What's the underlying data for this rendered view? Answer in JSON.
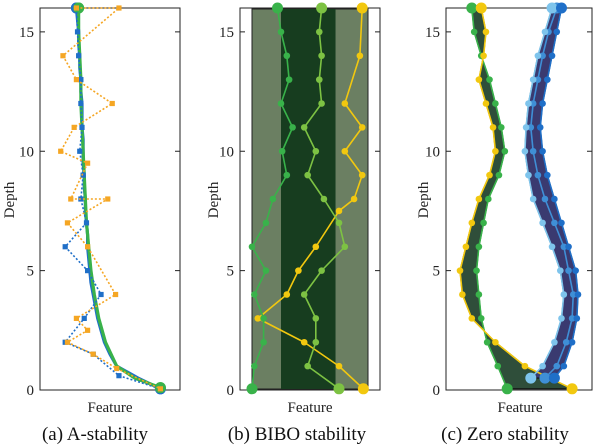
{
  "colors": {
    "blue": "#1f6fc8",
    "orange": "#f5a623",
    "green": "#39b24a",
    "yellow": "#f2c80f",
    "lightgreen": "#7dc243",
    "bibo_outer": "#6b7f62",
    "bibo_inner": "#173d1f",
    "zero_left_fill": "#2f4e3a",
    "zero_right_fill": "#3a3a70",
    "lightblue": "#7ec4ec",
    "midblue": "#3f8fd6"
  },
  "chart_data": [
    {
      "type": "line",
      "caption": "(a) A-stability",
      "xlabel": "Feature",
      "ylabel": "Depth",
      "ylim": [
        0,
        16
      ],
      "yticks": [
        0,
        5,
        10,
        15
      ],
      "series": [
        {
          "style": "solid",
          "color": "blue",
          "points": [
            [
              0.2,
              16
            ],
            [
              0.21,
              15.5
            ],
            [
              0.22,
              15
            ],
            [
              0.22,
              14.5
            ],
            [
              0.23,
              14
            ],
            [
              0.23,
              13.5
            ],
            [
              0.24,
              13
            ],
            [
              0.24,
              12.5
            ],
            [
              0.25,
              12
            ],
            [
              0.25,
              11.5
            ],
            [
              0.25,
              11
            ],
            [
              0.26,
              10.5
            ],
            [
              0.26,
              10
            ],
            [
              0.26,
              9.5
            ],
            [
              0.27,
              9
            ],
            [
              0.27,
              8.5
            ],
            [
              0.28,
              8
            ],
            [
              0.28,
              7.5
            ],
            [
              0.29,
              7
            ],
            [
              0.3,
              6.5
            ],
            [
              0.3,
              6
            ],
            [
              0.31,
              5.5
            ],
            [
              0.32,
              5
            ],
            [
              0.33,
              4.5
            ],
            [
              0.35,
              4
            ],
            [
              0.37,
              3.5
            ],
            [
              0.39,
              3
            ],
            [
              0.42,
              2.5
            ],
            [
              0.45,
              2
            ],
            [
              0.5,
              1.5
            ],
            [
              0.56,
              1
            ],
            [
              0.75,
              0.5
            ],
            [
              0.95,
              0.05
            ]
          ]
        },
        {
          "style": "solid",
          "color": "green",
          "points": [
            [
              0.22,
              16
            ],
            [
              0.22,
              15
            ],
            [
              0.23,
              14
            ],
            [
              0.24,
              13
            ],
            [
              0.24,
              12
            ],
            [
              0.25,
              11
            ],
            [
              0.26,
              10
            ],
            [
              0.27,
              9
            ],
            [
              0.28,
              8
            ],
            [
              0.29,
              7
            ],
            [
              0.31,
              6
            ],
            [
              0.33,
              5
            ],
            [
              0.36,
              4
            ],
            [
              0.4,
              3
            ],
            [
              0.46,
              2
            ],
            [
              0.56,
              1
            ],
            [
              0.72,
              0.5
            ],
            [
              0.95,
              0.1
            ]
          ]
        },
        {
          "style": "dotted",
          "color": "blue",
          "points": [
            [
              0.2,
              16
            ],
            [
              0.21,
              15
            ],
            [
              0.22,
              14
            ],
            [
              0.24,
              13
            ],
            [
              0.24,
              12
            ],
            [
              0.25,
              11
            ],
            [
              0.23,
              10
            ],
            [
              0.26,
              9
            ],
            [
              0.24,
              8
            ],
            [
              0.29,
              7
            ],
            [
              0.1,
              6
            ],
            [
              0.3,
              5
            ],
            [
              0.42,
              4
            ],
            [
              0.27,
              3
            ],
            [
              0.1,
              2
            ],
            [
              0.35,
              1.5
            ],
            [
              0.58,
              0.6
            ],
            [
              0.95,
              0.05
            ]
          ]
        },
        {
          "style": "dotted",
          "color": "orange",
          "points": [
            [
              0.2,
              16
            ],
            [
              0.58,
              16
            ],
            [
              0.08,
              14
            ],
            [
              0.2,
              13
            ],
            [
              0.52,
              12
            ],
            [
              0.18,
              11
            ],
            [
              0.06,
              10
            ],
            [
              0.3,
              9.5
            ],
            [
              0.15,
              8
            ],
            [
              0.48,
              8
            ],
            [
              0.12,
              7
            ],
            [
              0.3,
              6
            ],
            [
              0.55,
              4
            ],
            [
              0.2,
              3
            ],
            [
              0.3,
              2.5
            ],
            [
              0.12,
              2
            ],
            [
              0.35,
              1.5
            ],
            [
              0.56,
              0.9
            ],
            [
              0.95,
              0.05
            ]
          ]
        }
      ]
    },
    {
      "type": "line",
      "caption": "(b) BIBO stability",
      "xlabel": "Feature",
      "ylabel": "Depth",
      "ylim": [
        0,
        16
      ],
      "yticks": [
        0,
        5,
        10,
        15
      ],
      "bands": {
        "outer": [
          0.0,
          1.0
        ],
        "inner": [
          0.25,
          0.72
        ]
      },
      "series": [
        {
          "color": "yellow",
          "points": [
            [
              0.95,
              16
            ],
            [
              0.93,
              14
            ],
            [
              0.8,
              12
            ],
            [
              0.95,
              11
            ],
            [
              0.8,
              10
            ],
            [
              0.95,
              9
            ],
            [
              0.88,
              8
            ],
            [
              0.75,
              7.5
            ],
            [
              0.55,
              6
            ],
            [
              0.4,
              5
            ],
            [
              0.3,
              4
            ],
            [
              0.05,
              3
            ],
            [
              0.45,
              2
            ],
            [
              0.75,
              1
            ],
            [
              0.96,
              0.05
            ]
          ]
        },
        {
          "color": "green",
          "points": [
            [
              0.22,
              16
            ],
            [
              0.25,
              15
            ],
            [
              0.3,
              14
            ],
            [
              0.32,
              13
            ],
            [
              0.25,
              12
            ],
            [
              0.35,
              11
            ],
            [
              0.26,
              10
            ],
            [
              0.3,
              9
            ],
            [
              0.18,
              8
            ],
            [
              0.12,
              7
            ],
            [
              0.0,
              6
            ],
            [
              0.12,
              5
            ],
            [
              0.02,
              4
            ],
            [
              0.1,
              3
            ],
            [
              0.1,
              2
            ],
            [
              0.02,
              1
            ],
            [
              0.0,
              0.05
            ]
          ]
        },
        {
          "color": "lightgreen",
          "points": [
            [
              0.6,
              16
            ],
            [
              0.58,
              15
            ],
            [
              0.6,
              14
            ],
            [
              0.58,
              13
            ],
            [
              0.6,
              12
            ],
            [
              0.45,
              11
            ],
            [
              0.55,
              10
            ],
            [
              0.48,
              9
            ],
            [
              0.62,
              8
            ],
            [
              0.75,
              7
            ],
            [
              0.8,
              6
            ],
            [
              0.6,
              5
            ],
            [
              0.45,
              4
            ],
            [
              0.55,
              3
            ],
            [
              0.55,
              2
            ],
            [
              0.48,
              1
            ],
            [
              0.75,
              0.05
            ]
          ]
        }
      ]
    },
    {
      "type": "line",
      "caption": "(c) Zero stability",
      "xlabel": "Feature",
      "ylabel": "Depth",
      "ylim": [
        0,
        16
      ],
      "yticks": [
        0,
        5,
        10,
        15
      ],
      "series": [
        {
          "color": "green",
          "points": [
            [
              0.1,
              16
            ],
            [
              0.12,
              15
            ],
            [
              0.18,
              14
            ],
            [
              0.25,
              13
            ],
            [
              0.3,
              12
            ],
            [
              0.35,
              11
            ],
            [
              0.38,
              10
            ],
            [
              0.33,
              9
            ],
            [
              0.24,
              8
            ],
            [
              0.2,
              7
            ],
            [
              0.16,
              6
            ],
            [
              0.14,
              5
            ],
            [
              0.16,
              4
            ],
            [
              0.18,
              3
            ],
            [
              0.23,
              2
            ],
            [
              0.32,
              1
            ],
            [
              0.4,
              0.05
            ]
          ]
        },
        {
          "color": "yellow",
          "points": [
            [
              0.18,
              16
            ],
            [
              0.22,
              15
            ],
            [
              0.2,
              14
            ],
            [
              0.16,
              13
            ],
            [
              0.22,
              12
            ],
            [
              0.28,
              11
            ],
            [
              0.3,
              10
            ],
            [
              0.25,
              9
            ],
            [
              0.16,
              8
            ],
            [
              0.1,
              7
            ],
            [
              0.05,
              6
            ],
            [
              0.0,
              5
            ],
            [
              0.02,
              4
            ],
            [
              0.1,
              3
            ],
            [
              0.3,
              2
            ],
            [
              0.55,
              1
            ],
            [
              0.95,
              0.05
            ]
          ]
        },
        {
          "color": "midblue",
          "points": [
            [
              0.82,
              16
            ],
            [
              0.75,
              15
            ],
            [
              0.7,
              14
            ],
            [
              0.66,
              13
            ],
            [
              0.62,
              12
            ],
            [
              0.6,
              11
            ],
            [
              0.62,
              10
            ],
            [
              0.66,
              9
            ],
            [
              0.72,
              8
            ],
            [
              0.8,
              7
            ],
            [
              0.88,
              6
            ],
            [
              0.92,
              5
            ],
            [
              0.96,
              4
            ],
            [
              0.95,
              3
            ],
            [
              0.9,
              2
            ],
            [
              0.82,
              1
            ],
            [
              0.72,
              0.5
            ]
          ]
        },
        {
          "color": "lightblue",
          "points": [
            [
              0.78,
              16
            ],
            [
              0.72,
              15
            ],
            [
              0.66,
              14
            ],
            [
              0.62,
              13
            ],
            [
              0.58,
              12
            ],
            [
              0.56,
              11
            ],
            [
              0.55,
              10
            ],
            [
              0.58,
              9
            ],
            [
              0.62,
              8
            ],
            [
              0.7,
              7
            ],
            [
              0.78,
              6
            ],
            [
              0.85,
              5
            ],
            [
              0.88,
              4
            ],
            [
              0.86,
              3
            ],
            [
              0.8,
              2
            ],
            [
              0.7,
              1
            ],
            [
              0.6,
              0.5
            ]
          ]
        },
        {
          "color": "blue",
          "points": [
            [
              0.86,
              16
            ],
            [
              0.82,
              15
            ],
            [
              0.78,
              14
            ],
            [
              0.74,
              13
            ],
            [
              0.7,
              12
            ],
            [
              0.68,
              11
            ],
            [
              0.7,
              10
            ],
            [
              0.74,
              9
            ],
            [
              0.8,
              8
            ],
            [
              0.86,
              7
            ],
            [
              0.92,
              6
            ],
            [
              0.98,
              5
            ],
            [
              1.0,
              4
            ],
            [
              0.99,
              3
            ],
            [
              0.95,
              2
            ],
            [
              0.88,
              1
            ],
            [
              0.8,
              0.5
            ]
          ]
        }
      ]
    }
  ]
}
